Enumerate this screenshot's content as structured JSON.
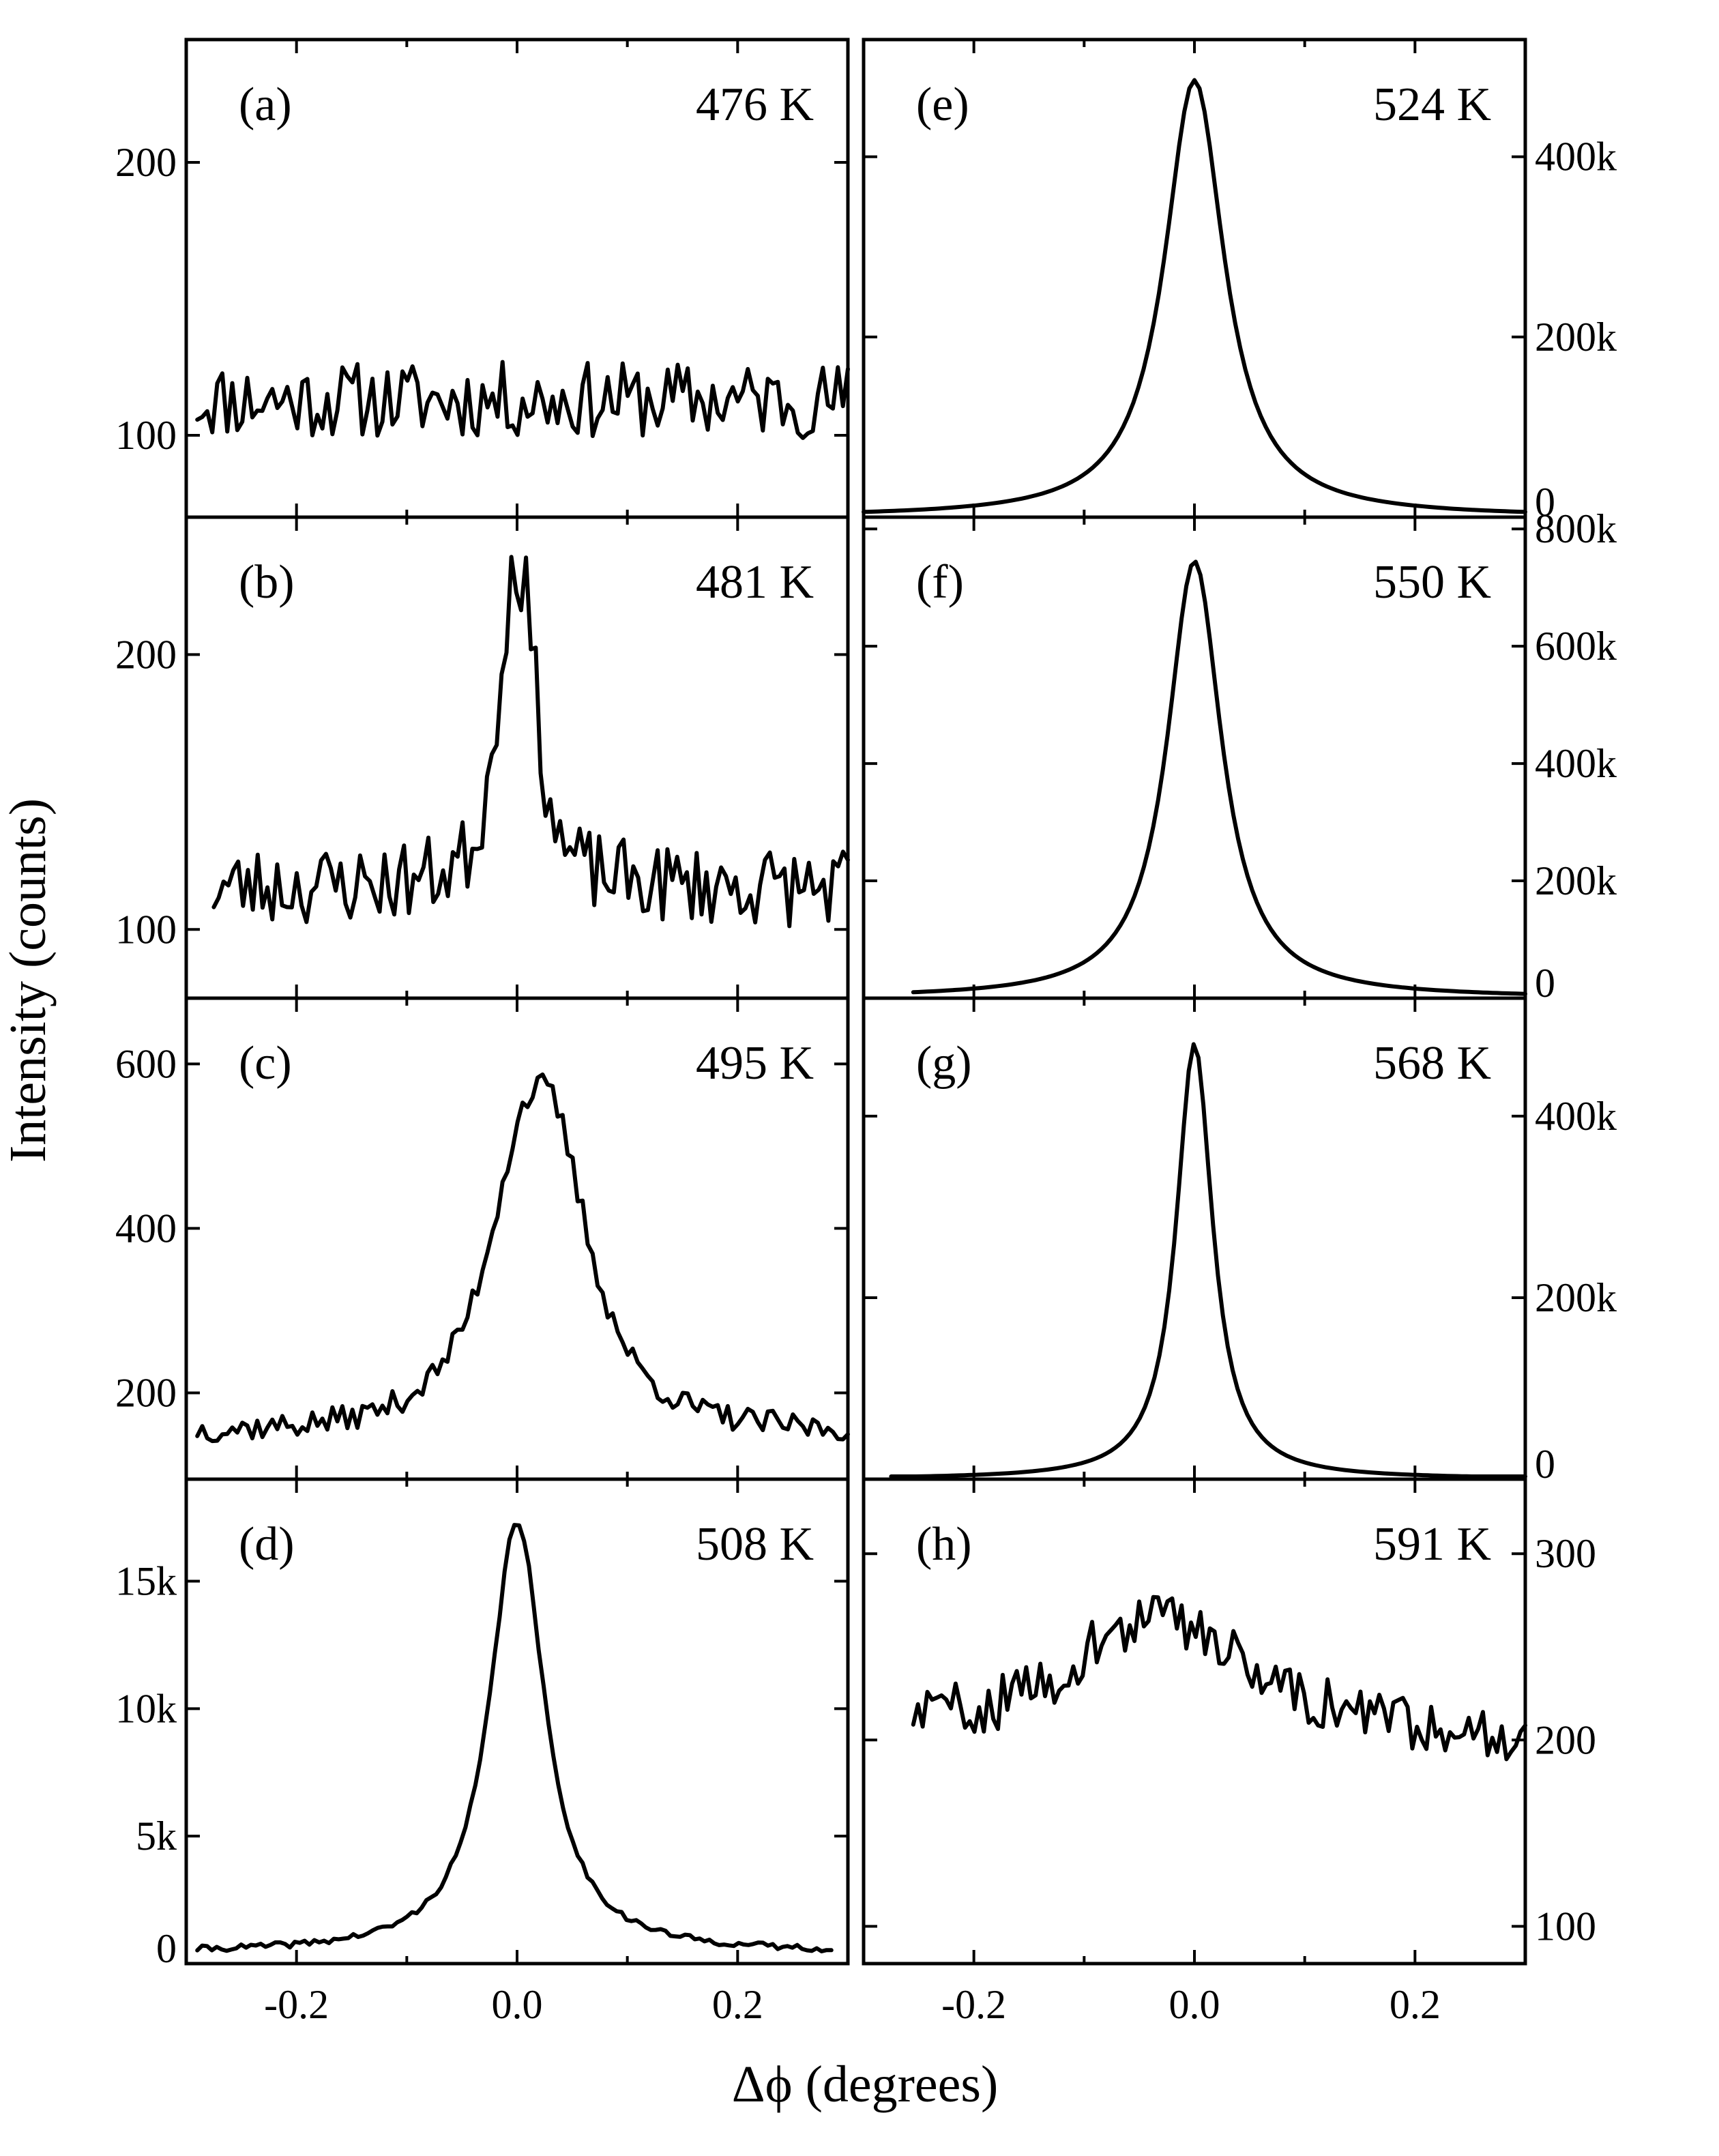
{
  "chart_data": {
    "type": "line",
    "xlabel": "Δϕ (degrees)",
    "ylabel": "Intensity (counts)",
    "x_ticks": [
      "-0.2",
      "0.0",
      "0.2"
    ],
    "x_tick_values": [
      -0.2,
      0.0,
      0.2
    ],
    "panels": [
      {
        "id": "a",
        "label": "(a)",
        "temperature": "476 K",
        "column": "left",
        "row": 0,
        "xlim": [
          -0.3,
          0.3
        ],
        "ylim": [
          70,
          245
        ],
        "yticks": [
          100,
          200
        ],
        "ytick_labels": [
          "100",
          "200"
        ],
        "shape": "noise",
        "baseline": 113,
        "amp": 0,
        "width": 0.03,
        "noise": 10,
        "x_start": -0.29,
        "x_end": 0.3,
        "seed": 11
      },
      {
        "id": "b",
        "label": "(b)",
        "temperature": "481 K",
        "column": "left",
        "row": 1,
        "xlim": [
          -0.3,
          0.3
        ],
        "ylim": [
          75,
          250
        ],
        "yticks": [
          100,
          200
        ],
        "ytick_labels": [
          "100",
          "200"
        ],
        "shape": "peak",
        "baseline": 115,
        "amp": 120,
        "width": 0.025,
        "noise": 12,
        "x_start": -0.275,
        "x_end": 0.3,
        "seed": 23
      },
      {
        "id": "c",
        "label": "(c)",
        "temperature": "495 K",
        "column": "left",
        "row": 2,
        "xlim": [
          -0.3,
          0.3
        ],
        "ylim": [
          95,
          680
        ],
        "yticks": [
          200,
          400,
          600
        ],
        "ytick_labels": [
          "200",
          "400",
          "600"
        ],
        "shape": "broad",
        "baseline": 150,
        "amp": 420,
        "width": 0.05,
        "noise": 14,
        "x_start": -0.29,
        "x_end": 0.3,
        "seed": 37
      },
      {
        "id": "d",
        "label": "(d)",
        "temperature": "508 K",
        "column": "left",
        "row": 3,
        "xlim": [
          -0.3,
          0.3
        ],
        "ylim": [
          0,
          19000
        ],
        "yticks": [
          0,
          5000,
          10000,
          15000
        ],
        "ytick_labels": [
          "0",
          "5k",
          "10k",
          "15k"
        ],
        "shape": "lorentz",
        "baseline": 400,
        "amp": 17000,
        "width": 0.03,
        "noise": 120,
        "x_start": -0.29,
        "x_end": 0.285,
        "seed": 41
      },
      {
        "id": "e",
        "label": "(e)",
        "temperature": "524 K",
        "column": "right",
        "row": 0,
        "xlim": [
          -0.3,
          0.3
        ],
        "ylim": [
          0,
          530000
        ],
        "yticks": [
          0,
          200000,
          400000
        ],
        "ytick_labels": [
          "0",
          "200k",
          "400k"
        ],
        "shape": "lorentz",
        "baseline": 0,
        "amp": 485000,
        "width": 0.033,
        "noise": 0,
        "x_start": -0.3,
        "x_end": 0.3,
        "seed": 5
      },
      {
        "id": "f",
        "label": "(f)",
        "temperature": "550 K",
        "column": "right",
        "row": 1,
        "xlim": [
          -0.3,
          0.3
        ],
        "ylim": [
          0,
          820000
        ],
        "yticks": [
          0,
          200000,
          400000,
          600000,
          800000
        ],
        "ytick_labels": [
          "0",
          "200k",
          "400k",
          "600k",
          "800k"
        ],
        "shape": "lorentz",
        "baseline": 0,
        "amp": 745000,
        "width": 0.03,
        "noise": 0,
        "x_start": -0.255,
        "x_end": 0.3,
        "seed": 6
      },
      {
        "id": "g",
        "label": "(g)",
        "temperature": "568 K",
        "column": "right",
        "row": 2,
        "xlim": [
          -0.3,
          0.3
        ],
        "ylim": [
          0,
          530000
        ],
        "yticks": [
          0,
          200000,
          400000
        ],
        "ytick_labels": [
          "0",
          "200k",
          "400k"
        ],
        "shape": "lorentz",
        "baseline": 0,
        "amp": 480000,
        "width": 0.02,
        "noise": 0,
        "x_start": -0.275,
        "x_end": 0.3,
        "seed": 7
      },
      {
        "id": "h",
        "label": "(h)",
        "temperature": "591 K",
        "column": "right",
        "row": 3,
        "xlim": [
          -0.3,
          0.3
        ],
        "ylim": [
          80,
          340
        ],
        "yticks": [
          100,
          200,
          300
        ],
        "ytick_labels": [
          "100",
          "200",
          "300"
        ],
        "shape": "plateau",
        "baseline": 215,
        "amp": 50,
        "width": 0.1,
        "noise": 11,
        "x_start": -0.255,
        "x_end": 0.3,
        "seed": 59
      }
    ]
  }
}
